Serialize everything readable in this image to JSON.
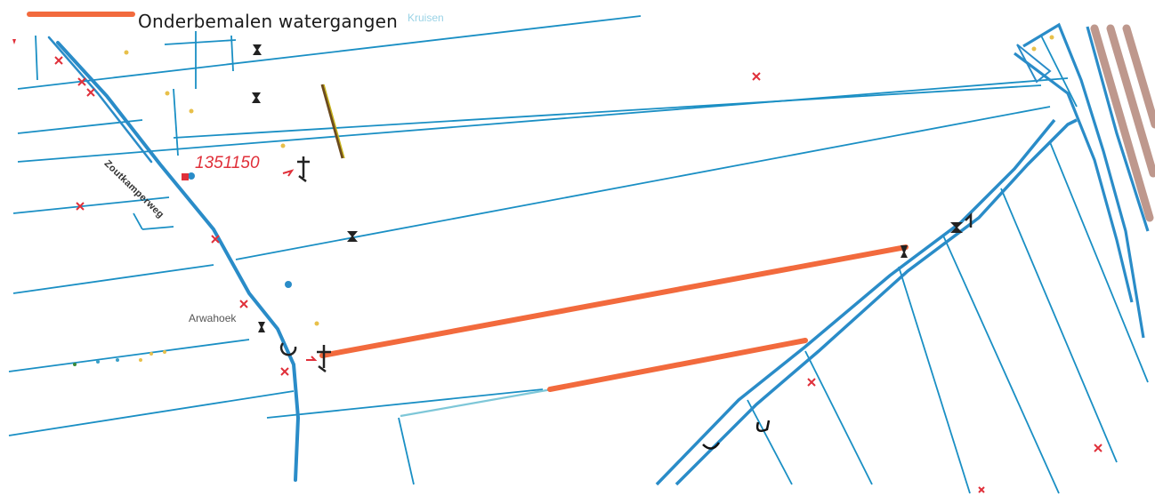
{
  "legend": {
    "label": "Onderbemalen watergangen",
    "faded_label": "Kruisen",
    "swatch_color": "#f26a3d"
  },
  "map": {
    "parcel_number": "1351150",
    "place_name": "Arwahoek",
    "road_name": "Zoutkamperweg",
    "colors": {
      "waterway": "#1a8fc4",
      "main_canal": "#2a8cc8",
      "highlight": "#f26a3d",
      "faded_water": "#7ec7d8",
      "marker_red": "#e0303a",
      "structure": "#222222",
      "rail_brown": "#b3877a"
    }
  }
}
